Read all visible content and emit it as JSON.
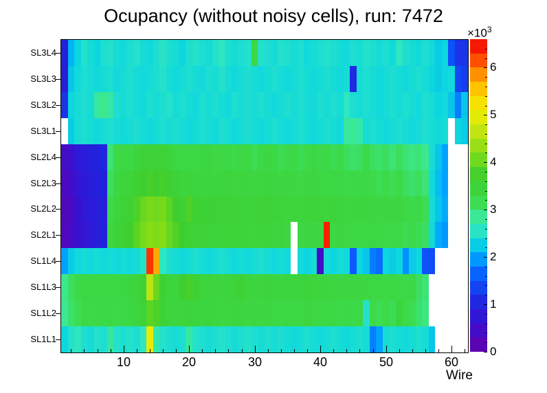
{
  "title": "Ocupancy (without noisy cells), run: 7472",
  "chart_data": {
    "type": "heatmap",
    "title": "Ocupancy (without noisy cells), run: 7472",
    "xlabel": "Wire",
    "ylabel": "",
    "x_ticks": [
      10,
      20,
      30,
      40,
      50,
      60
    ],
    "n_wires": 62,
    "x_range": [
      1,
      62
    ],
    "layers": [
      "SL3L4",
      "SL3L3",
      "SL3L2",
      "SL3L1",
      "SL2L4",
      "SL2L3",
      "SL2L2",
      "SL2L1",
      "SL1L4",
      "SL1L3",
      "SL1L2",
      "SL1L1"
    ],
    "values_unit": "counts, in thousands (×10³); 0 = empty/noisy cell (white)",
    "zmin": 0,
    "zmax": 6.6,
    "colorbar_ticks": [
      0,
      1,
      2,
      3,
      4,
      5,
      6
    ],
    "colorbar_exponent": {
      "times_base": "×10",
      "exp": "3"
    },
    "grid": false,
    "legend_position": "right-colorbar",
    "palette": [
      [
        0.0,
        "#6600aa"
      ],
      [
        0.6,
        "#3a10d0"
      ],
      [
        1.0,
        "#2222dd"
      ],
      [
        1.6,
        "#0a5aff"
      ],
      [
        2.0,
        "#00a2ff"
      ],
      [
        2.3,
        "#0cd6e0"
      ],
      [
        2.6,
        "#2ee6c0"
      ],
      [
        2.9,
        "#3ce88c"
      ],
      [
        3.2,
        "#3cd948"
      ],
      [
        3.7,
        "#3ecf2e"
      ],
      [
        4.2,
        "#84dd16"
      ],
      [
        4.7,
        "#c8e611"
      ],
      [
        5.1,
        "#f2ee00"
      ],
      [
        5.5,
        "#ffcc00"
      ],
      [
        5.9,
        "#ff8800"
      ],
      [
        6.2,
        "#ff4400"
      ],
      [
        6.6,
        "#ee0000"
      ]
    ],
    "values": [
      [
        1.0,
        2.1,
        2.3,
        2.5,
        2.4,
        2.3,
        2.45,
        2.5,
        2.4,
        2.35,
        2.45,
        2.5,
        2.4,
        2.35,
        2.45,
        2.55,
        2.45,
        2.4,
        2.3,
        2.45,
        2.5,
        2.45,
        2.4,
        2.5,
        2.6,
        2.45,
        2.4,
        2.45,
        2.5,
        3.3,
        2.5,
        2.45,
        2.4,
        2.5,
        2.45,
        2.4,
        2.45,
        2.35,
        2.4,
        2.45,
        2.5,
        2.45,
        2.4,
        2.35,
        2.45,
        2.4,
        2.5,
        2.45,
        2.4,
        2.45,
        2.35,
        2.6,
        2.45,
        2.4,
        2.35,
        2.45,
        2.35,
        2.25,
        2.3,
        1.5,
        1.2,
        1.2
      ],
      [
        0.9,
        2.2,
        2.35,
        2.45,
        2.4,
        2.35,
        2.4,
        2.45,
        2.35,
        2.4,
        2.45,
        2.4,
        2.35,
        2.4,
        2.45,
        2.5,
        2.4,
        2.35,
        2.4,
        2.45,
        2.4,
        2.35,
        2.45,
        2.4,
        2.5,
        2.4,
        2.35,
        2.4,
        2.45,
        2.4,
        2.35,
        2.4,
        2.45,
        2.4,
        2.35,
        2.4,
        2.45,
        2.4,
        2.35,
        2.4,
        2.45,
        2.4,
        2.35,
        2.4,
        1.1,
        2.4,
        2.45,
        2.4,
        2.35,
        2.4,
        2.45,
        2.4,
        2.35,
        2.4,
        2.45,
        2.4,
        2.3,
        2.25,
        2.3,
        2.35,
        1.4,
        1.3
      ],
      [
        1.2,
        2.3,
        2.4,
        2.45,
        2.4,
        2.8,
        2.9,
        2.75,
        2.45,
        2.4,
        2.45,
        2.4,
        2.35,
        2.45,
        2.4,
        2.45,
        2.5,
        2.4,
        2.45,
        2.4,
        2.35,
        2.45,
        2.4,
        2.45,
        2.4,
        2.35,
        2.45,
        2.4,
        2.45,
        2.4,
        2.45,
        2.4,
        2.35,
        2.4,
        2.45,
        2.4,
        2.45,
        2.4,
        2.35,
        2.45,
        2.4,
        2.45,
        2.4,
        2.6,
        2.45,
        2.4,
        2.45,
        2.4,
        2.35,
        2.4,
        2.45,
        2.4,
        2.45,
        2.4,
        2.35,
        2.45,
        2.4,
        2.3,
        2.35,
        2.2,
        1.8,
        2.2
      ],
      [
        0,
        2.25,
        2.4,
        2.45,
        2.4,
        2.35,
        2.4,
        2.45,
        2.4,
        2.35,
        2.4,
        2.45,
        2.4,
        2.35,
        2.4,
        2.45,
        2.4,
        2.45,
        2.4,
        2.35,
        2.4,
        2.45,
        2.4,
        2.35,
        2.45,
        2.4,
        2.35,
        2.4,
        2.45,
        2.4,
        2.35,
        2.4,
        2.45,
        2.4,
        2.35,
        2.4,
        2.45,
        2.4,
        2.35,
        2.4,
        2.45,
        2.4,
        2.35,
        2.8,
        2.85,
        2.75,
        2.4,
        2.45,
        2.4,
        2.35,
        2.4,
        2.45,
        2.4,
        2.35,
        2.4,
        2.45,
        2.4,
        2.35,
        2.4,
        0,
        2.3,
        2.25
      ],
      [
        0.45,
        0.55,
        0.8,
        0.9,
        0.95,
        1.0,
        1.05,
        3.0,
        3.2,
        3.3,
        3.25,
        3.4,
        3.5,
        3.55,
        3.5,
        3.55,
        3.45,
        3.3,
        3.25,
        3.3,
        3.25,
        3.3,
        3.35,
        3.25,
        3.3,
        3.25,
        3.2,
        3.3,
        3.25,
        3.15,
        3.25,
        3.3,
        3.25,
        3.15,
        3.2,
        3.25,
        3.15,
        3.2,
        3.3,
        3.2,
        3.25,
        3.15,
        3.2,
        3.1,
        3.05,
        3.1,
        3.2,
        3.1,
        3.05,
        3.1,
        3.0,
        3.1,
        3.0,
        2.95,
        3.0,
        2.9,
        2.4,
        2.2,
        2.0,
        0,
        0,
        0
      ],
      [
        0.35,
        0.45,
        0.7,
        0.85,
        0.9,
        0.95,
        1.0,
        3.1,
        3.3,
        3.4,
        3.45,
        3.6,
        3.7,
        3.75,
        3.7,
        3.75,
        3.65,
        3.5,
        3.4,
        3.45,
        3.4,
        3.35,
        3.4,
        3.35,
        3.4,
        3.45,
        3.35,
        3.4,
        3.35,
        3.3,
        3.35,
        3.4,
        3.35,
        3.3,
        3.35,
        3.3,
        3.25,
        3.3,
        3.35,
        3.3,
        3.25,
        3.3,
        3.25,
        3.2,
        3.25,
        3.2,
        3.25,
        3.2,
        3.15,
        3.2,
        3.15,
        3.2,
        3.1,
        3.05,
        3.1,
        3.0,
        2.35,
        2.15,
        2.0,
        0,
        0,
        0
      ],
      [
        0.3,
        0.38,
        0.6,
        0.8,
        0.85,
        0.9,
        0.95,
        3.2,
        3.4,
        3.5,
        3.6,
        3.8,
        4.0,
        4.1,
        4.05,
        4.1,
        3.9,
        3.7,
        3.6,
        3.8,
        3.6,
        3.5,
        3.6,
        3.55,
        3.5,
        3.55,
        3.5,
        3.45,
        3.5,
        3.45,
        3.5,
        3.55,
        3.5,
        3.45,
        3.4,
        3.45,
        3.4,
        3.45,
        3.5,
        3.45,
        3.4,
        3.45,
        3.4,
        3.35,
        3.4,
        3.35,
        3.4,
        3.35,
        3.3,
        3.35,
        3.3,
        3.35,
        3.25,
        3.2,
        3.25,
        3.15,
        2.4,
        2.2,
        2.05,
        0,
        0,
        0
      ],
      [
        0.3,
        0.4,
        0.6,
        0.7,
        0.8,
        0.9,
        1.0,
        3.3,
        3.5,
        3.6,
        3.7,
        3.9,
        4.1,
        4.2,
        4.15,
        4.2,
        4.0,
        3.8,
        3.7,
        3.6,
        3.5,
        3.55,
        3.5,
        3.45,
        3.5,
        3.55,
        3.45,
        3.5,
        3.45,
        3.4,
        3.45,
        3.5,
        3.4,
        3.45,
        3.35,
        0,
        3.3,
        3.35,
        3.3,
        3.35,
        6.4,
        3.3,
        3.35,
        3.3,
        3.25,
        3.3,
        3.25,
        3.3,
        3.25,
        3.2,
        3.25,
        3.2,
        3.15,
        3.2,
        3.15,
        3.1,
        2.35,
        2.05,
        1.95,
        0,
        0,
        0
      ],
      [
        2.0,
        2.25,
        2.35,
        2.4,
        2.35,
        2.4,
        2.35,
        2.4,
        2.35,
        2.4,
        2.35,
        2.4,
        2.5,
        6.3,
        5.7,
        2.6,
        2.45,
        2.4,
        2.35,
        2.4,
        2.45,
        2.4,
        2.35,
        2.4,
        2.45,
        2.4,
        2.35,
        2.4,
        2.35,
        2.4,
        2.45,
        2.4,
        2.35,
        2.4,
        2.35,
        0,
        2.35,
        2.3,
        2.4,
        0.45,
        2.35,
        2.3,
        2.4,
        2.35,
        1.6,
        2.3,
        2.2,
        1.8,
        1.7,
        2.3,
        2.25,
        2.3,
        1.9,
        2.25,
        2.3,
        1.5,
        1.45,
        0,
        0,
        0,
        0,
        0
      ],
      [
        2.9,
        3.1,
        3.2,
        3.3,
        3.25,
        3.3,
        3.25,
        3.3,
        3.25,
        3.3,
        3.35,
        3.4,
        3.6,
        4.6,
        4.0,
        3.6,
        3.45,
        3.4,
        3.7,
        3.75,
        3.6,
        3.4,
        3.45,
        3.4,
        3.35,
        3.4,
        3.45,
        3.6,
        3.4,
        3.35,
        3.4,
        3.45,
        3.4,
        3.35,
        3.4,
        3.35,
        3.4,
        3.45,
        3.4,
        3.35,
        3.4,
        3.35,
        3.3,
        3.35,
        3.3,
        3.35,
        3.3,
        3.25,
        3.3,
        3.25,
        3.3,
        3.25,
        3.2,
        3.25,
        3.1,
        3.0,
        0,
        0,
        0,
        0,
        0,
        0
      ],
      [
        2.85,
        3.05,
        3.15,
        3.25,
        3.2,
        3.25,
        3.2,
        3.25,
        3.2,
        3.25,
        3.3,
        3.35,
        3.55,
        3.9,
        3.8,
        3.5,
        3.4,
        3.35,
        3.4,
        3.45,
        3.4,
        3.35,
        3.4,
        3.35,
        3.3,
        3.35,
        3.4,
        3.35,
        3.3,
        3.35,
        3.3,
        3.35,
        3.3,
        3.25,
        3.3,
        3.25,
        3.3,
        3.35,
        3.3,
        3.25,
        3.3,
        3.25,
        3.2,
        3.25,
        3.2,
        3.25,
        2.5,
        3.2,
        3.15,
        3.2,
        3.15,
        3.4,
        3.2,
        3.15,
        3.05,
        2.95,
        0,
        0,
        0,
        0,
        0,
        0
      ],
      [
        2.3,
        2.5,
        2.6,
        2.45,
        2.4,
        2.5,
        2.45,
        2.8,
        2.5,
        2.45,
        2.5,
        2.45,
        2.6,
        5.0,
        2.7,
        2.5,
        2.45,
        2.4,
        2.45,
        2.8,
        2.5,
        2.45,
        2.4,
        2.45,
        2.5,
        2.45,
        2.4,
        2.45,
        2.5,
        2.45,
        2.4,
        2.45,
        2.4,
        2.45,
        2.4,
        2.35,
        2.4,
        2.45,
        2.4,
        2.35,
        2.4,
        2.45,
        2.4,
        2.35,
        2.4,
        2.45,
        2.4,
        1.8,
        2.0,
        2.4,
        2.45,
        2.4,
        2.35,
        2.4,
        2.45,
        2.4,
        2.2,
        0,
        0,
        0,
        0,
        0
      ]
    ]
  }
}
